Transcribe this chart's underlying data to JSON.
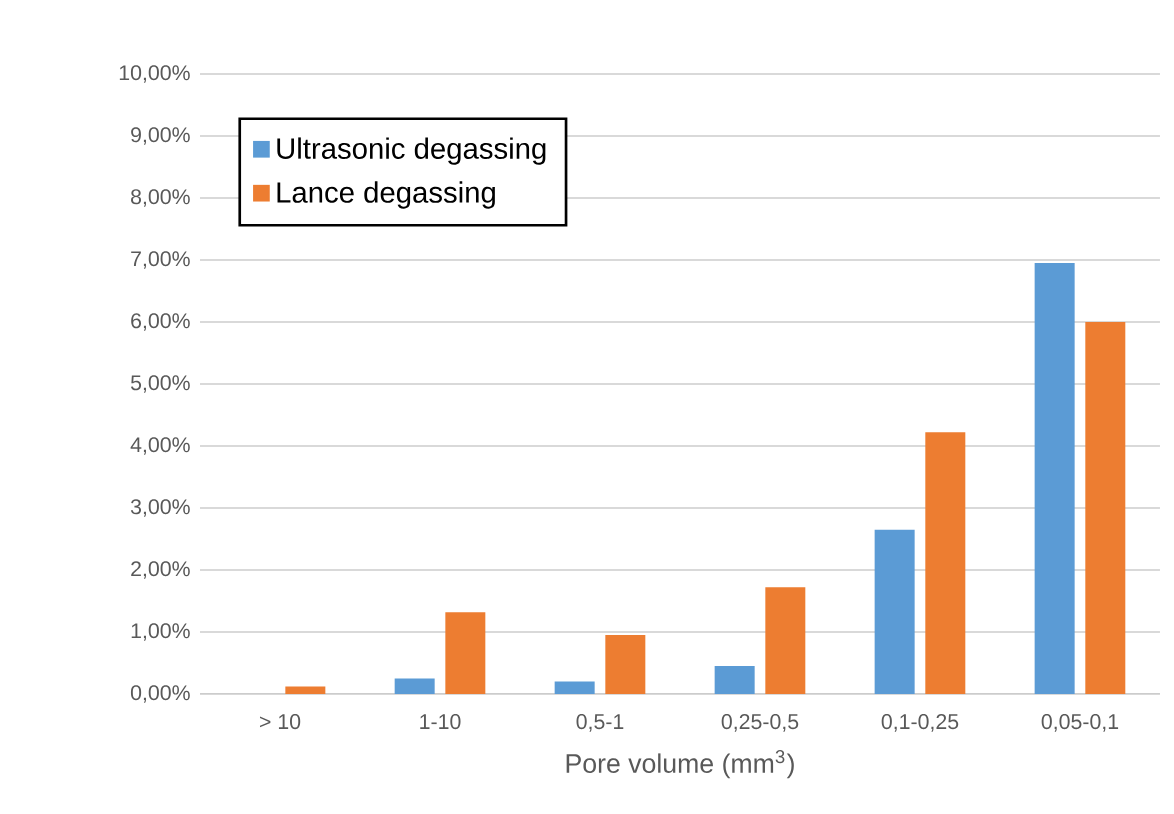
{
  "chart_data": {
    "type": "bar",
    "xlabel": "Pore volume (mm$^{3}$)",
    "categories": [
      "> 10",
      "1-10",
      "0,5-1",
      "0,25-0,5",
      "0,1-0,25",
      "0,05-0,1"
    ],
    "series": [
      {
        "name": "Ultrasonic degassing",
        "color": "#5b9bd5",
        "values": [
          0,
          0.25,
          0.2,
          0.45,
          2.65,
          6.95
        ]
      },
      {
        "name": "Lance degassing",
        "color": "#ed7d31",
        "values": [
          0.12,
          1.32,
          0.95,
          1.72,
          4.22,
          6.0
        ]
      }
    ],
    "ylim": [
      0,
      10
    ],
    "yticks": [
      {
        "value": 0,
        "label": "0,00%"
      },
      {
        "value": 1,
        "label": "1,00%"
      },
      {
        "value": 2,
        "label": "2,00%"
      },
      {
        "value": 3,
        "label": "3,00%"
      },
      {
        "value": 4,
        "label": "4,00%"
      },
      {
        "value": 5,
        "label": "5,00%"
      },
      {
        "value": 6,
        "label": "6,00%"
      },
      {
        "value": 7,
        "label": "7,00%"
      },
      {
        "value": 8,
        "label": "8,00%"
      },
      {
        "value": 9,
        "label": "9,00%"
      },
      {
        "value": 10,
        "label": "10,00%"
      }
    ],
    "grid": "y",
    "legend": "top left"
  }
}
